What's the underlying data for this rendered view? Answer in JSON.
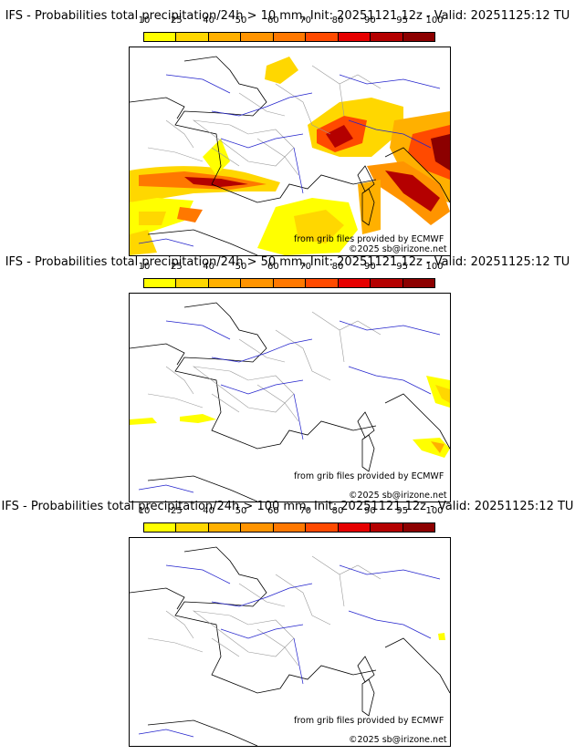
{
  "colorbar": {
    "ticks": [
      "10",
      "25",
      "40",
      "50",
      "60",
      "70",
      "80",
      "90",
      "95",
      "100"
    ],
    "colors": [
      "#ffff00",
      "#ffd700",
      "#ffb000",
      "#ff9400",
      "#ff7800",
      "#ff4a00",
      "#e60000",
      "#b40000",
      "#8c0000"
    ]
  },
  "panels": [
    {
      "title": "IFS - Probabilities total precipitation/24h > 10 mm, Init: 20251121 12z - Valid: 20251125:12 TU"
    },
    {
      "title": "IFS - Probabilities total precipitation/24h > 50 mm, Init: 20251121 12z - Valid: 20251125:12 TU"
    },
    {
      "title": "IFS - Probabilities total precipitation/24h > 100 mm, Init: 20251121 12z - Valid: 20251125:12 TU"
    }
  ],
  "credits": {
    "source": "from grib files provided by ECMWF",
    "copyright": "©2025 sb@irizone.net"
  },
  "colors": {
    "coast": "#000000",
    "borders": "#9a9a9a",
    "rivers": "#2222cc"
  }
}
